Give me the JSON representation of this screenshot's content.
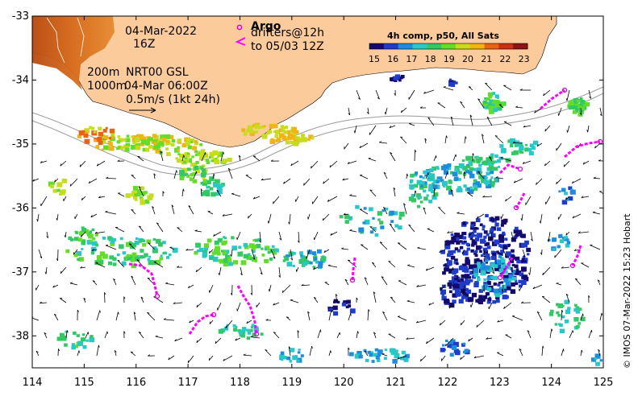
{
  "map": {
    "date": "04-Mar-2022",
    "time": "16Z",
    "model_line1_a": "200m",
    "model_line1_b": "NRT00 GSL",
    "model_line2_a": "1000m",
    "model_line2_b": "04-Mar 06:00Z",
    "scale_label": "0.5m/s (1kt 24h)",
    "argo_label": "Argo",
    "drifters_label": "drifters@12h",
    "drifters_to": "to 05/03 12Z",
    "side_credit": "© IMOS 07-Mar-2022 15:23 Hobart"
  },
  "colorbar": {
    "title": "4h comp, p50, All Sats",
    "ticks": [
      "15",
      "16",
      "17",
      "18",
      "19",
      "20",
      "21",
      "22",
      "23"
    ],
    "colors": [
      "#140a6e",
      "#1e3cc8",
      "#1e8cdc",
      "#28c8c8",
      "#32c864",
      "#64dc28",
      "#c8dc1e",
      "#f0b414",
      "#e66414",
      "#c83214",
      "#8c1414"
    ]
  },
  "axes": {
    "x_ticks": [
      "114",
      "115",
      "116",
      "117",
      "118",
      "119",
      "120",
      "121",
      "122",
      "123",
      "124",
      "125"
    ],
    "y_ticks": [
      "-33",
      "-34",
      "-35",
      "-36",
      "-37",
      "-38"
    ],
    "x_range": [
      114,
      125
    ],
    "y_range": [
      -38.5,
      -33
    ]
  },
  "colors": {
    "land": "#fccb9c",
    "argo": "#e000e0",
    "drifter": "#ff00ff",
    "isobath": "#9a9a9a"
  }
}
